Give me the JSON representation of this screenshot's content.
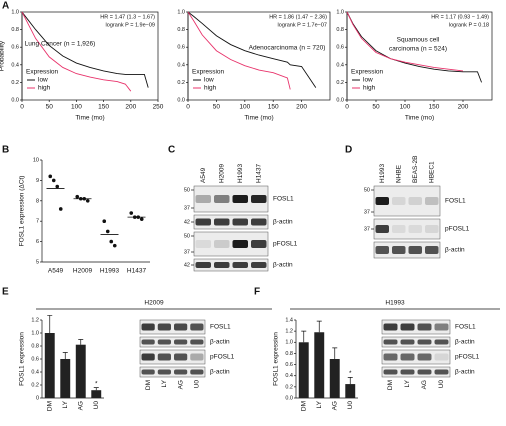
{
  "chart_data": [
    {
      "type": "line",
      "panel": "A",
      "ylabel": "Probability",
      "xlabel": "Time (mo)",
      "annotations": [
        "HR = 1.47 (1.3 − 1.67)",
        "logrank P = 1.9e−09",
        "Lung Cancer (n = 1,926)"
      ],
      "legend_title": "Expression",
      "x": [
        0,
        10,
        25,
        50,
        75,
        100,
        125,
        150,
        175,
        190,
        200,
        225,
        232
      ],
      "series": [
        {
          "name": "low",
          "color": "#111111",
          "values": [
            1,
            0.92,
            0.8,
            0.62,
            0.5,
            0.42,
            0.37,
            0.33,
            0.3,
            0.29,
            0.29,
            0.29,
            0.14
          ]
        },
        {
          "name": "high",
          "color": "#e8336b",
          "values": [
            1,
            0.88,
            0.7,
            0.49,
            0.37,
            0.3,
            0.26,
            0.23,
            0.21,
            0.18,
            0.1,
            null,
            null
          ]
        }
      ],
      "xlim": [
        0,
        250
      ],
      "xticks": [
        0,
        50,
        100,
        150,
        200,
        250
      ],
      "ylim": [
        0,
        1
      ],
      "yticks": [
        {
          "value": 0,
          "label": "0.0"
        },
        0.2,
        0.4,
        0.6,
        0.8,
        {
          "value": 1,
          "label": "1.0"
        }
      ]
    },
    {
      "type": "line",
      "xlabel": "Time (mo)",
      "annotations": [
        "HR = 1.86 (1.47 − 2.36)",
        "logrank P = 1.7e−07",
        "Adenocarcinoma (n = 720)"
      ],
      "legend_title": "Expression",
      "x": [
        0,
        10,
        25,
        50,
        75,
        100,
        125,
        150,
        175,
        180,
        200,
        225
      ],
      "series": [
        {
          "name": "low",
          "color": "#111111",
          "values": [
            1,
            0.95,
            0.87,
            0.73,
            0.63,
            0.56,
            0.51,
            0.47,
            0.43,
            0.4,
            0.38,
            0.14
          ]
        },
        {
          "name": "high",
          "color": "#e8336b",
          "values": [
            1,
            0.9,
            0.74,
            0.56,
            0.46,
            0.39,
            0.34,
            0.31,
            0.25,
            0.12,
            null,
            null
          ]
        }
      ],
      "xlim": [
        0,
        250
      ],
      "xticks": [
        0,
        50,
        100,
        150,
        200
      ],
      "ylim": [
        0,
        1
      ],
      "yticks": [
        {
          "value": 0,
          "label": "0.0"
        },
        0.2,
        0.4,
        0.6,
        0.8,
        {
          "value": 1,
          "label": "1.0"
        }
      ]
    },
    {
      "type": "line",
      "xlabel": "Time (mo)",
      "annotations": [
        "HR = 1.17 (0.93 − 1.49)",
        "logrank P = 0.18",
        "Squamous cell",
        "carcinoma (n = 524)"
      ],
      "legend_title": "Expression",
      "x": [
        0,
        10,
        25,
        50,
        75,
        100,
        125,
        150,
        175,
        200,
        225,
        232
      ],
      "series": [
        {
          "name": "low",
          "color": "#111111",
          "values": [
            1,
            0.87,
            0.72,
            0.56,
            0.47,
            0.42,
            0.38,
            0.35,
            0.33,
            0.32,
            0.32,
            0.2
          ]
        },
        {
          "name": "high",
          "color": "#e8336b",
          "values": [
            1,
            0.86,
            0.7,
            0.54,
            0.47,
            0.43,
            0.4,
            0.37,
            0.35,
            0.33,
            null,
            null
          ]
        }
      ],
      "xlim": [
        0,
        250
      ],
      "xticks": [
        0,
        50,
        100,
        150,
        200
      ],
      "ylim": [
        0,
        1
      ],
      "yticks": [
        {
          "value": 0,
          "label": "0.0"
        },
        0.2,
        0.4,
        0.6,
        0.8,
        {
          "value": 1,
          "label": "1.0"
        }
      ]
    },
    {
      "type": "dot",
      "panel": "B",
      "ylabel": "FOSL1 expression (ΔCt)",
      "categories": [
        "A549",
        "H2009",
        "H1993",
        "H1437"
      ],
      "points": [
        [
          9.2,
          9.0,
          8.7,
          7.6
        ],
        [
          8.2,
          8.1,
          8.1,
          8.0
        ],
        [
          7.0,
          6.5,
          6.0,
          5.8
        ],
        [
          7.4,
          7.2,
          7.2,
          7.1
        ]
      ],
      "means": [
        8.6,
        8.1,
        6.35,
        7.2
      ],
      "ylim": [
        5,
        10
      ],
      "yticks": [
        5,
        6,
        7,
        8,
        9,
        10
      ]
    },
    {
      "type": "bar",
      "panel": "E",
      "title": "H2009",
      "ylabel": "FOSL1 expression",
      "categories": [
        "DM",
        "LY",
        "AG",
        "U0"
      ],
      "values": [
        1.0,
        0.6,
        0.82,
        0.12
      ],
      "errors": [
        0.27,
        0.1,
        0.08,
        0.04
      ],
      "color": "#222222",
      "annotation": "*",
      "ylim": [
        0,
        1.2
      ],
      "yticks": [
        0,
        0.2,
        0.4,
        0.6,
        0.8,
        {
          "value": 1,
          "label": "1.0"
        },
        1.2
      ]
    },
    {
      "type": "bar",
      "panel": "F",
      "title": "H1993",
      "ylabel": "FOSL1 expression",
      "categories": [
        "DM",
        "LY",
        "AG",
        "U0"
      ],
      "values": [
        1.0,
        1.18,
        0.7,
        0.25
      ],
      "errors": [
        0.2,
        0.2,
        0.2,
        0.12
      ],
      "color": "#222222",
      "annotation": "*",
      "ylim": [
        0,
        1.4
      ],
      "yticks": [
        {
          "value": 0,
          "label": "0.0"
        },
        0.2,
        0.4,
        0.6,
        0.8,
        {
          "value": 1,
          "label": "1.0"
        },
        1.2,
        1.4
      ]
    }
  ],
  "blots": [
    {
      "panel": "C",
      "lanes": [
        "A549",
        "H2009",
        "H1993",
        "H1437"
      ],
      "rows": [
        {
          "label": "FOSL1",
          "markers": [
            50,
            37
          ]
        },
        {
          "label": "β-actin",
          "markers": [
            42
          ]
        },
        {
          "label": "pFOSL1",
          "markers": [
            50,
            37
          ]
        },
        {
          "label": "β-actin",
          "markers": [
            42
          ]
        }
      ]
    },
    {
      "panel": "D",
      "lanes": [
        "H1993",
        "NHBE",
        "BEAS-2B",
        "HBEC1"
      ],
      "rows": [
        {
          "label": "FOSL1",
          "markers": [
            50,
            37
          ]
        },
        {
          "label": "pFOSL1",
          "markers": [
            37
          ]
        },
        {
          "label": "β-actin"
        }
      ]
    },
    {
      "lanes": [
        "DM",
        "LY",
        "AG",
        "U0"
      ],
      "rows": [
        {
          "label": "FOSL1"
        },
        {
          "label": "β-actin"
        },
        {
          "label": "pFOSL1"
        },
        {
          "label": "β-actin"
        }
      ]
    },
    {
      "lanes": [
        "DM",
        "LY",
        "AG",
        "U0"
      ],
      "rows": [
        {
          "label": "FOSL1"
        },
        {
          "label": "β-actin"
        },
        {
          "label": "pFOSL1"
        },
        {
          "label": "β-actin"
        }
      ]
    }
  ]
}
